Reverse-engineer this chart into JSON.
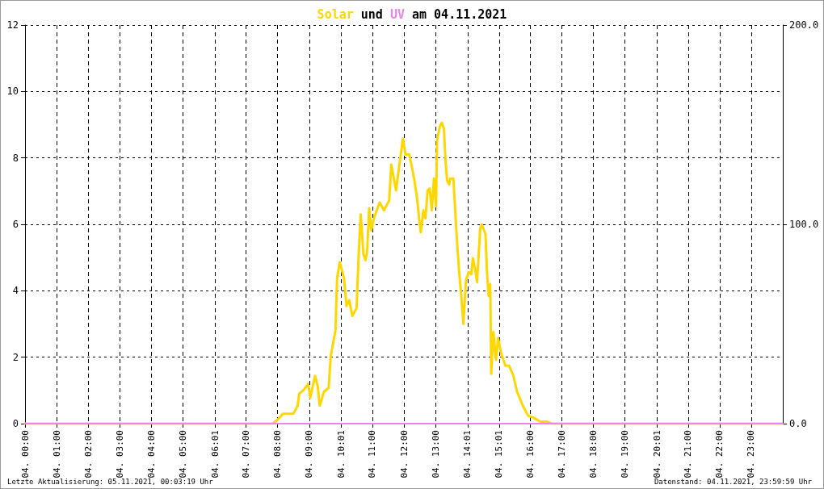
{
  "chart_data": {
    "type": "line",
    "title": "Solar und UV am 04.11.2021",
    "xlim": [
      "2021-11-04T00:00",
      "2021-11-05T00:00"
    ],
    "xticks": [
      {
        "value": "2021-11-04T00:00",
        "label": "04. 00:00"
      },
      {
        "value": "2021-11-04T01:00",
        "label": "04. 01:00"
      },
      {
        "value": "2021-11-04T02:00",
        "label": "04. 02:00"
      },
      {
        "value": "2021-11-04T03:00",
        "label": "04. 03:00"
      },
      {
        "value": "2021-11-04T04:00",
        "label": "04. 04:00"
      },
      {
        "value": "2021-11-04T05:00",
        "label": "04. 05:00"
      },
      {
        "value": "2021-11-04T06:01",
        "label": "04. 06:01"
      },
      {
        "value": "2021-11-04T07:00",
        "label": "04. 07:00"
      },
      {
        "value": "2021-11-04T08:00",
        "label": "04. 08:00"
      },
      {
        "value": "2021-11-04T09:00",
        "label": "04. 09:00"
      },
      {
        "value": "2021-11-04T10:01",
        "label": "04. 10:01"
      },
      {
        "value": "2021-11-04T11:00",
        "label": "04. 11:00"
      },
      {
        "value": "2021-11-04T12:00",
        "label": "04. 12:00"
      },
      {
        "value": "2021-11-04T13:00",
        "label": "04. 13:00"
      },
      {
        "value": "2021-11-04T14:01",
        "label": "04. 14:01"
      },
      {
        "value": "2021-11-04T15:01",
        "label": "04. 15:01"
      },
      {
        "value": "2021-11-04T16:00",
        "label": "04. 16:00"
      },
      {
        "value": "2021-11-04T17:00",
        "label": "04. 17:00"
      },
      {
        "value": "2021-11-04T18:00",
        "label": "04. 18:00"
      },
      {
        "value": "2021-11-04T19:00",
        "label": "04. 19:00"
      },
      {
        "value": "2021-11-04T20:01",
        "label": "04. 20:01"
      },
      {
        "value": "2021-11-04T21:00",
        "label": "04. 21:00"
      },
      {
        "value": "2021-11-04T22:00",
        "label": "04. 22:00"
      },
      {
        "value": "2021-11-04T23:00",
        "label": "04. 23:00"
      }
    ],
    "ylim": [
      0,
      12
    ],
    "yticks": [
      0,
      2,
      4,
      6,
      8,
      10,
      12
    ],
    "y2lim": [
      0,
      200
    ],
    "y2ticks": [
      {
        "value": 0,
        "label": "0.0"
      },
      {
        "value": 100,
        "label": "100.0"
      },
      {
        "value": 200,
        "label": "200.0"
      }
    ],
    "grid": true,
    "series": [
      {
        "color": "#ffd700",
        "axis": "y2",
        "x": [
          "2021-11-04T00:00",
          "2021-11-04T07:51",
          "2021-11-04T08:00",
          "2021-11-04T08:10",
          "2021-11-04T08:30",
          "2021-11-04T08:38",
          "2021-11-04T08:41",
          "2021-11-04T08:50",
          "2021-11-04T08:58",
          "2021-11-04T09:02",
          "2021-11-04T09:11",
          "2021-11-04T09:16",
          "2021-11-04T09:20",
          "2021-11-04T09:28",
          "2021-11-04T09:37",
          "2021-11-04T09:41",
          "2021-11-04T09:50",
          "2021-11-04T09:53",
          "2021-11-04T09:58",
          "2021-11-04T10:06",
          "2021-11-04T10:11",
          "2021-11-04T10:16",
          "2021-11-04T10:22",
          "2021-11-04T10:30",
          "2021-11-04T10:33",
          "2021-11-04T10:36",
          "2021-11-04T10:38",
          "2021-11-04T10:43",
          "2021-11-04T10:47",
          "2021-11-04T10:50",
          "2021-11-04T10:54",
          "2021-11-04T10:58",
          "2021-11-04T11:04",
          "2021-11-04T11:14",
          "2021-11-04T11:22",
          "2021-11-04T11:32",
          "2021-11-04T11:36",
          "2021-11-04T11:45",
          "2021-11-04T11:58",
          "2021-11-04T12:03",
          "2021-11-04T12:10",
          "2021-11-04T12:15",
          "2021-11-04T12:20",
          "2021-11-04T12:25",
          "2021-11-04T12:28",
          "2021-11-04T12:32",
          "2021-11-04T12:37",
          "2021-11-04T12:41",
          "2021-11-04T12:45",
          "2021-11-04T12:49",
          "2021-11-04T12:53",
          "2021-11-04T12:57",
          "2021-11-04T13:01",
          "2021-11-04T13:03",
          "2021-11-04T13:08",
          "2021-11-04T13:12",
          "2021-11-04T13:16",
          "2021-11-04T13:19",
          "2021-11-04T13:22",
          "2021-11-04T13:26",
          "2021-11-04T13:28",
          "2021-11-04T13:34",
          "2021-11-04T13:37",
          "2021-11-04T13:41",
          "2021-11-04T13:45",
          "2021-11-04T13:49",
          "2021-11-04T13:53",
          "2021-11-04T13:58",
          "2021-11-04T14:03",
          "2021-11-04T14:08",
          "2021-11-04T14:11",
          "2021-11-04T14:15",
          "2021-11-04T14:19",
          "2021-11-04T14:25",
          "2021-11-04T14:28",
          "2021-11-04T14:35",
          "2021-11-04T14:38",
          "2021-11-04T14:41",
          "2021-11-04T14:44",
          "2021-11-04T14:46",
          "2021-11-04T14:50",
          "2021-11-04T14:55",
          "2021-11-04T14:59",
          "2021-11-04T15:05",
          "2021-11-04T15:13",
          "2021-11-04T15:20",
          "2021-11-04T15:28",
          "2021-11-04T15:35",
          "2021-11-04T15:46",
          "2021-11-04T15:56",
          "2021-11-04T16:06",
          "2021-11-04T16:19",
          "2021-11-04T16:32",
          "2021-11-04T16:41",
          "2021-11-04T23:59"
        ],
        "values": [
          0,
          0,
          2,
          5,
          5,
          9,
          15,
          17,
          20,
          13,
          24,
          19,
          9,
          16,
          18,
          34,
          47,
          73,
          81,
          73,
          59,
          62,
          54,
          58,
          78,
          96,
          105,
          85,
          82,
          86,
          108,
          97,
          104,
          111,
          107,
          112,
          130,
          117,
          143,
          135,
          135,
          129,
          122,
          113,
          105,
          96,
          107,
          103,
          117,
          118,
          107,
          123,
          109,
          142,
          149,
          151,
          148,
          132,
          122,
          120,
          123,
          123,
          109,
          91,
          76,
          64,
          50,
          72,
          76,
          75,
          83,
          78,
          71,
          98,
          100,
          95,
          75,
          64,
          70,
          25,
          46,
          32,
          43,
          35,
          29,
          29,
          24,
          16,
          9,
          4,
          3,
          1,
          1,
          0,
          0
        ]
      },
      {
        "color": "#ee82ee",
        "axis": "y",
        "x": [
          "2021-11-04T00:00",
          "2021-11-04T23:59"
        ],
        "values": [
          0,
          0
        ]
      }
    ],
    "annotations": [
      "Letzte Aktualisierung: 05.11.2021, 00:03:19 Uhr",
      "Datenstand: 04.11.2021, 23:59:59 Uhr"
    ]
  }
}
